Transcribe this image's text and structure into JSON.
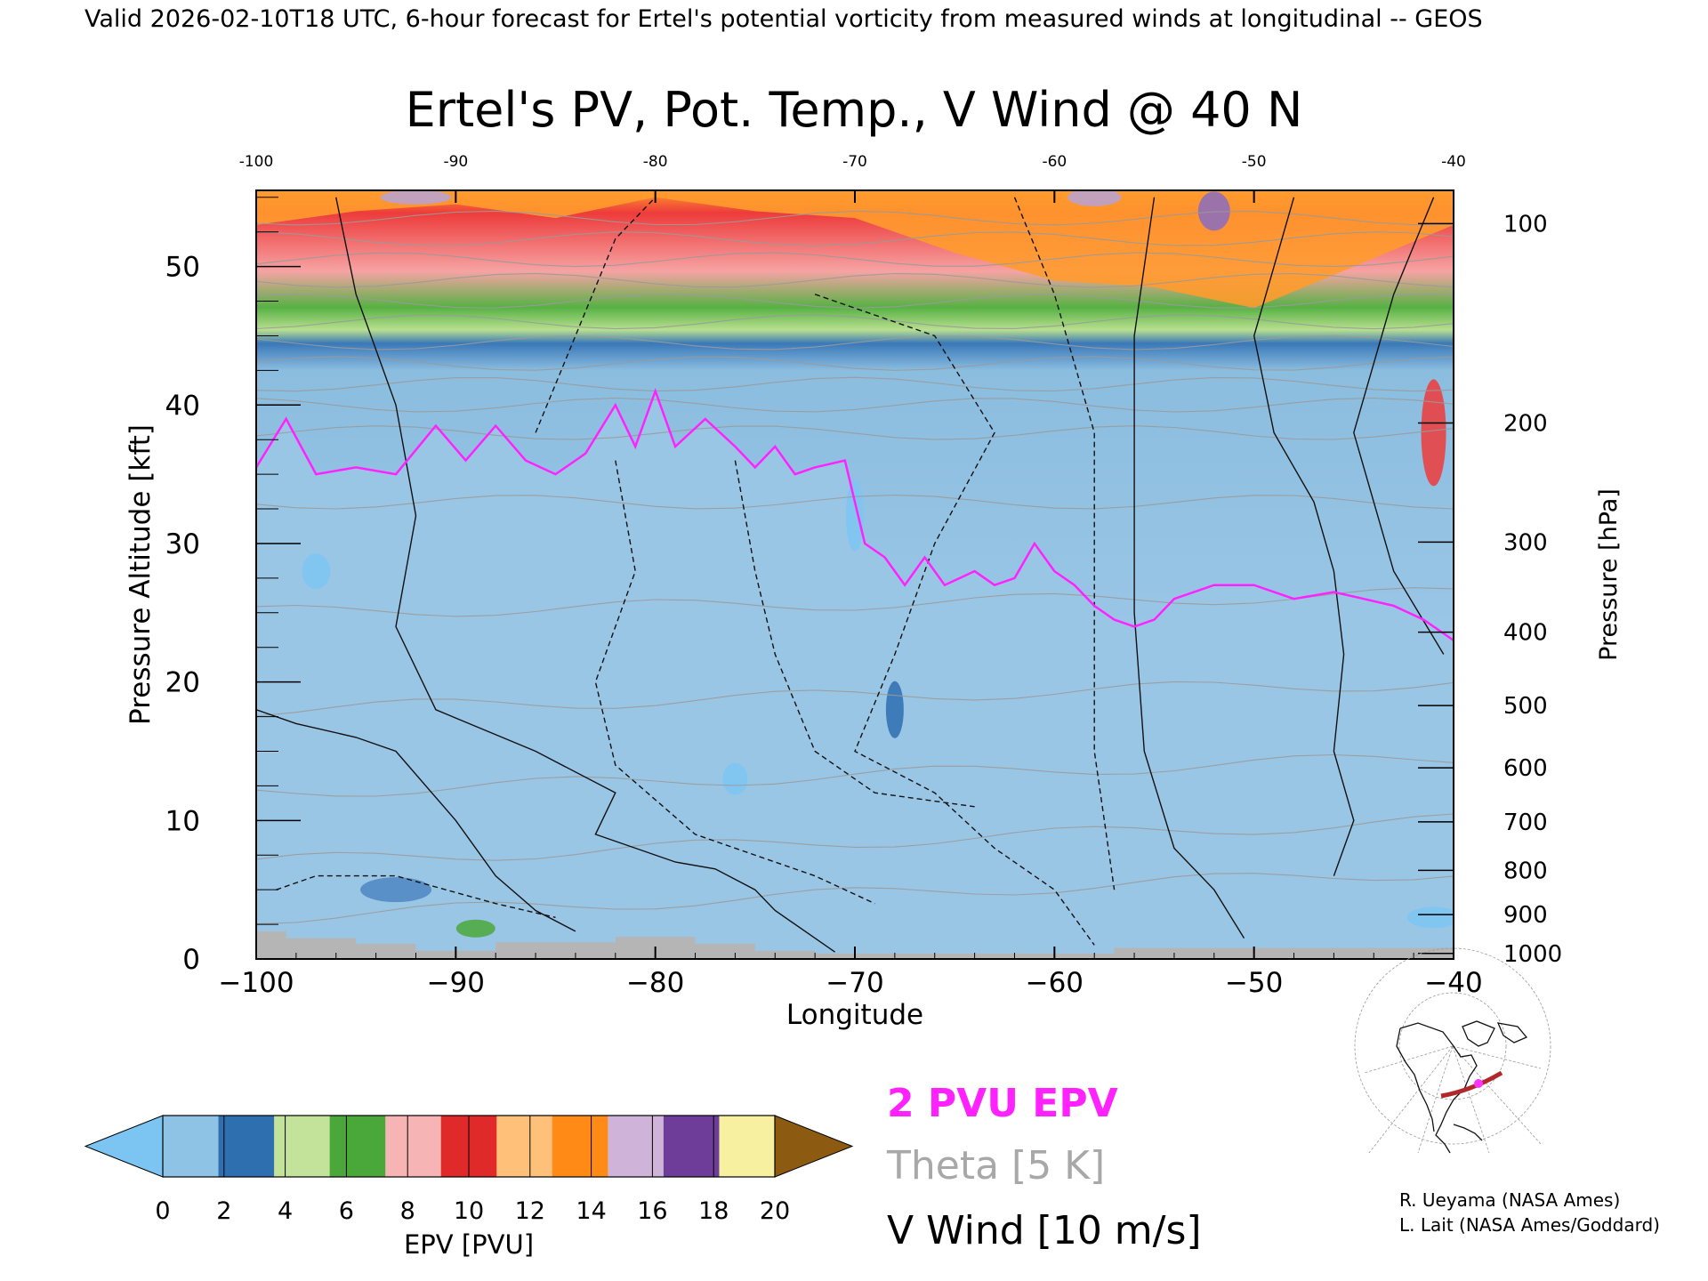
{
  "header": {
    "valid_line": "Valid 2026-02-10T18 UTC, 6-hour forecast for Ertel's potential vorticity from measured winds at longitudinal -- GEOS"
  },
  "chart_data": {
    "type": "heatmap",
    "title": "Ertel's PV, Pot. Temp., V Wind @ 40 N",
    "xlabel": "Longitude",
    "ylabel_left": "Pressure Altitude [kft]",
    "ylabel_right": "Pressure [hPa]",
    "xlim": [
      -100,
      -40
    ],
    "ylim": [
      0,
      55.5
    ],
    "x_ticks": [
      -100,
      -90,
      -80,
      -70,
      -60,
      -50,
      -40
    ],
    "x_tick_labels": [
      "−100",
      "−90",
      "−80",
      "−70",
      "−60",
      "−50",
      "−40"
    ],
    "x_top_tick_labels": [
      "-100",
      "-90",
      "-80",
      "-70",
      "-60",
      "-50",
      "-40"
    ],
    "y_ticks": [
      0,
      10,
      20,
      30,
      40,
      50
    ],
    "y_tick_labels": [
      "0",
      "10",
      "20",
      "30",
      "40",
      "50"
    ],
    "pressure_ticks": [
      {
        "hpa": 100,
        "kft": 53.1,
        "label": "100"
      },
      {
        "hpa": 200,
        "kft": 38.7,
        "label": "200"
      },
      {
        "hpa": 300,
        "kft": 30.1,
        "label": "300"
      },
      {
        "hpa": 400,
        "kft": 23.6,
        "label": "400"
      },
      {
        "hpa": 500,
        "kft": 18.3,
        "label": "500"
      },
      {
        "hpa": 600,
        "kft": 13.8,
        "label": "600"
      },
      {
        "hpa": 700,
        "kft": 9.9,
        "label": "700"
      },
      {
        "hpa": 800,
        "kft": 6.4,
        "label": "800"
      },
      {
        "hpa": 900,
        "kft": 3.2,
        "label": "900"
      },
      {
        "hpa": 1000,
        "kft": 0.4,
        "label": "1000"
      }
    ],
    "tropopause_2pvu": {
      "lon": [
        -100,
        -98.5,
        -97,
        -95,
        -93,
        -91,
        -89.5,
        -88,
        -86.5,
        -85,
        -83.5,
        -82,
        -81,
        -80,
        -79,
        -77.5,
        -76,
        -75,
        -74,
        -73,
        -72,
        -70.5,
        -69.5,
        -68.5,
        -67.5,
        -66.5,
        -65.5,
        -64,
        -63,
        -62,
        -61,
        -60,
        -59,
        -58,
        -57,
        -56,
        -55,
        -54,
        -52,
        -50,
        -48,
        -46,
        -44.5,
        -43,
        -41.5,
        -40
      ],
      "kft": [
        35.5,
        39,
        35,
        35.5,
        35,
        38.5,
        36,
        38.5,
        36,
        35,
        36.5,
        40,
        37,
        41,
        37,
        39,
        37,
        35.5,
        37,
        35,
        35.5,
        36,
        30,
        29,
        27,
        29,
        27,
        28,
        27,
        27.5,
        30,
        28,
        27,
        25.5,
        24.5,
        24,
        24.5,
        26,
        27,
        27,
        26,
        26.5,
        26,
        25.5,
        24.5,
        23
      ]
    },
    "terrain_kft": {
      "lon": [
        -100,
        -98.5,
        -98.5,
        -95,
        -95,
        -92,
        -92,
        -88,
        -88,
        -82,
        -82,
        -78,
        -78,
        -75,
        -75,
        -72,
        -72,
        -57,
        -57,
        -40
      ],
      "kft": [
        2,
        2,
        1.5,
        1.5,
        1.1,
        1.1,
        0.6,
        0.6,
        1.2,
        1.2,
        1.6,
        1.6,
        1.1,
        1.1,
        0.6,
        0.6,
        0.4,
        0.4,
        0.8,
        0.8
      ]
    },
    "theta_levels_k": [
      280,
      300,
      320,
      340,
      360,
      380,
      400,
      410,
      420,
      430
    ],
    "colorbar": {
      "label": "EPV [PVU]",
      "tick_labels": [
        "0",
        "2",
        "4",
        "6",
        "8",
        "10",
        "12",
        "14",
        "16",
        "18",
        "20"
      ],
      "colors": [
        "#8ec3e6",
        "#2e6fb0",
        "#c4e39a",
        "#4aa83a",
        "#f7b4b4",
        "#e02a2a",
        "#ffc17a",
        "#ff8a16",
        "#cfb3d8",
        "#6e3d9a",
        "#f7f0a0"
      ],
      "under_color": "#7cc5f2",
      "over_color": "#8c5a10"
    },
    "legend": [
      {
        "text": "2 PVU EPV",
        "color": "#ff22ff"
      },
      {
        "text": "Theta [5 K]",
        "color": "#a8a8a8"
      },
      {
        "text": "V Wind [10 m/s]",
        "color": "#000000"
      }
    ],
    "grid": false
  },
  "credits": {
    "line1": "R. Ueyama (NASA Ames)",
    "line2": "L. Lait (NASA Ames/Goddard)"
  },
  "inset_map": {
    "track_color": "#b2282a",
    "marker_color": "#ff33ff"
  }
}
